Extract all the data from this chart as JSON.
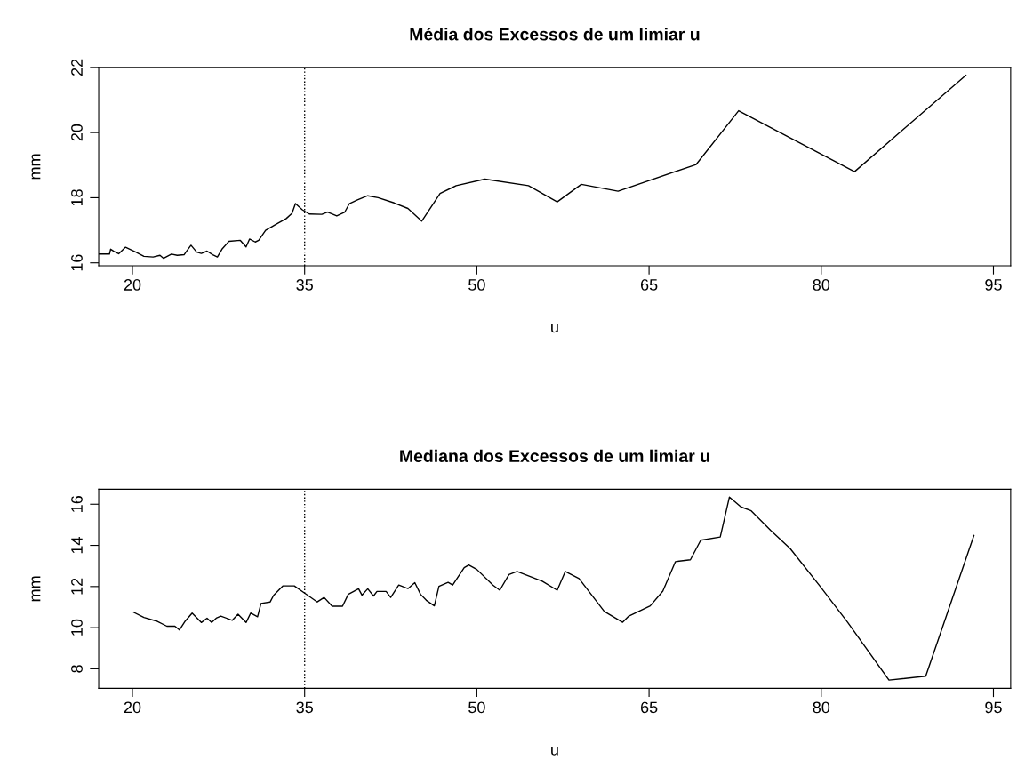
{
  "chart_data": [
    {
      "type": "line",
      "title": "Média dos Excessos de um limiar u",
      "xlabel": "u",
      "ylabel": "mm",
      "x": [
        17.1,
        18.0,
        18.1,
        18.4,
        18.8,
        19.4,
        20.3,
        21.0,
        21.8,
        22.4,
        22.7,
        23.4,
        23.9,
        24.5,
        24.7,
        25.1,
        25.6,
        26.0,
        26.5,
        27.0,
        27.4,
        27.8,
        28.4,
        29.4,
        29.9,
        30.2,
        30.7,
        31.0,
        31.6,
        32.5,
        33.4,
        33.9,
        34.2,
        34.8,
        35.4,
        36.5,
        37.0,
        37.8,
        38.5,
        38.9,
        39.6,
        40.5,
        41.4,
        42.8,
        44.0,
        45.2,
        46.8,
        48.2,
        50.7,
        54.5,
        57.0,
        59.1,
        62.3,
        69.1,
        72.8,
        82.9,
        92.6
      ],
      "series": [
        {
          "color": "#000000",
          "values": [
            16.27,
            16.27,
            16.42,
            16.35,
            16.28,
            16.48,
            16.33,
            16.2,
            16.18,
            16.23,
            16.14,
            16.27,
            16.23,
            16.25,
            16.35,
            16.54,
            16.33,
            16.29,
            16.36,
            16.25,
            16.18,
            16.42,
            16.66,
            16.69,
            16.49,
            16.73,
            16.64,
            16.69,
            17.0,
            17.18,
            17.36,
            17.52,
            17.82,
            17.63,
            17.5,
            17.49,
            17.56,
            17.44,
            17.56,
            17.82,
            17.93,
            18.06,
            18.0,
            17.84,
            17.67,
            17.28,
            18.13,
            18.37,
            18.57,
            18.37,
            17.87,
            18.41,
            18.2,
            19.02,
            20.67,
            18.8,
            21.76
          ]
        }
      ],
      "xlim": [
        17.06,
        96.5
      ],
      "ylim": [
        15.91,
        22.0
      ],
      "xticks": [
        20,
        35,
        50,
        65,
        80,
        95
      ],
      "yticks": [
        16,
        18,
        20,
        22
      ],
      "ref_lines": [
        {
          "axis": "x",
          "value": 35,
          "line_style": "dotted",
          "color": "#000000"
        }
      ],
      "grid": false,
      "legend": false,
      "line_style": "solid"
    },
    {
      "type": "line",
      "title": "Mediana dos Excessos de um limiar u",
      "xlabel": "u",
      "ylabel": "mm",
      "x": [
        20.1,
        21.0,
        22.1,
        23.0,
        23.7,
        24.1,
        24.6,
        25.2,
        26.0,
        26.5,
        26.9,
        27.3,
        27.7,
        28.7,
        29.2,
        29.9,
        30.3,
        30.9,
        31.2,
        32.0,
        32.3,
        33.1,
        34.1,
        35.0,
        36.1,
        36.7,
        37.4,
        38.3,
        38.8,
        39.7,
        40.0,
        40.5,
        41.0,
        41.3,
        42.1,
        42.5,
        43.2,
        44.0,
        44.6,
        45.1,
        45.6,
        46.3,
        46.7,
        47.5,
        47.9,
        48.9,
        49.3,
        50.0,
        51.4,
        52.0,
        52.8,
        53.5,
        55.7,
        57.0,
        57.7,
        58.9,
        61.1,
        62.7,
        63.2,
        65.1,
        66.2,
        67.3,
        68.6,
        69.5,
        71.2,
        72.0,
        73.0,
        73.9,
        75.6,
        77.3,
        79.9,
        82.3,
        85.9,
        89.1,
        93.3
      ],
      "series": [
        {
          "color": "#000000",
          "values": [
            10.75,
            10.5,
            10.32,
            10.07,
            10.07,
            9.89,
            10.32,
            10.71,
            10.25,
            10.46,
            10.25,
            10.46,
            10.56,
            10.36,
            10.65,
            10.25,
            10.71,
            10.53,
            11.18,
            11.25,
            11.57,
            12.03,
            12.03,
            11.68,
            11.25,
            11.47,
            11.04,
            11.04,
            11.62,
            11.89,
            11.58,
            11.89,
            11.54,
            11.76,
            11.76,
            11.47,
            12.07,
            11.9,
            12.19,
            11.62,
            11.33,
            11.06,
            12.01,
            12.2,
            12.07,
            12.92,
            13.05,
            12.83,
            12.07,
            11.82,
            12.58,
            12.73,
            12.26,
            11.82,
            12.73,
            12.39,
            10.79,
            10.26,
            10.55,
            11.06,
            11.78,
            13.21,
            13.3,
            14.25,
            14.41,
            16.35,
            15.87,
            15.68,
            14.73,
            13.84,
            12.01,
            10.26,
            7.45,
            7.64,
            14.48
          ]
        }
      ],
      "xlim": [
        17.06,
        96.5
      ],
      "ylim": [
        7.05,
        16.73
      ],
      "xticks": [
        20,
        35,
        50,
        65,
        80,
        95
      ],
      "yticks": [
        8,
        10,
        12,
        14,
        16
      ],
      "ref_lines": [
        {
          "axis": "x",
          "value": 35,
          "line_style": "dotted",
          "color": "#000000"
        }
      ],
      "grid": false,
      "legend": false,
      "line_style": "solid"
    }
  ]
}
